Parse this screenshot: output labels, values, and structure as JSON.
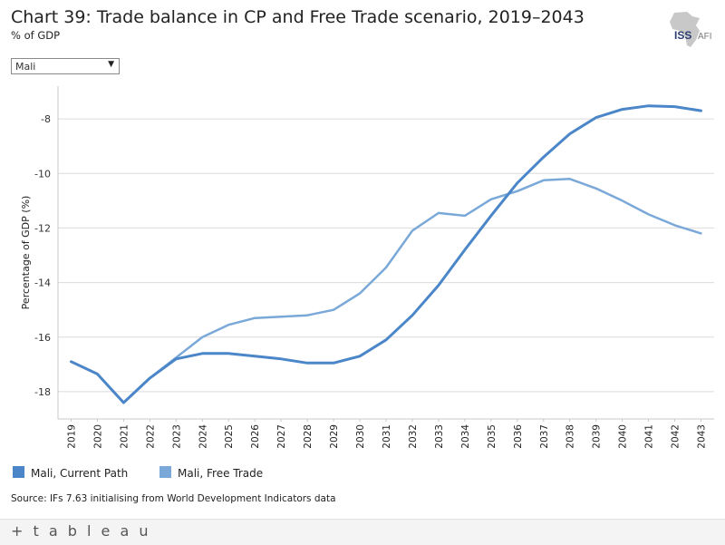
{
  "header": {
    "title": "Chart 39: Trade balance in CP and Free Trade scenario, 2019–2043",
    "subtitle": "% of GDP",
    "logo_text_bold": "ISS",
    "logo_text_light": "AFI"
  },
  "filter": {
    "selected": "Mali",
    "arrow_icon": "dropdown-arrow-icon"
  },
  "chart_data": {
    "type": "line",
    "ylabel": "Percentage of GDP (%)",
    "xlabel": "",
    "ylim": [
      -19,
      -6.8
    ],
    "yticks": [
      -8,
      -10,
      -12,
      -14,
      -16,
      -18
    ],
    "x": [
      "2019",
      "2020",
      "2021",
      "2022",
      "2023",
      "2024",
      "2025",
      "2026",
      "2027",
      "2028",
      "2029",
      "2030",
      "2031",
      "2032",
      "2033",
      "2034",
      "2035",
      "2036",
      "2037",
      "2038",
      "2039",
      "2040",
      "2041",
      "2042",
      "2043"
    ],
    "grid": true,
    "series": [
      {
        "name": "Mali, Current Path",
        "color": "#4a86c8",
        "values": [
          -16.9,
          -17.35,
          -18.4,
          -17.5,
          -16.8,
          -16.6,
          -16.6,
          -16.7,
          -16.8,
          -16.95,
          -16.95,
          -16.7,
          -16.1,
          -15.2,
          -14.1,
          -12.8,
          -11.55,
          -10.35,
          -9.4,
          -8.55,
          -7.95,
          -7.65,
          -7.52,
          -7.55,
          -7.7
        ],
        "line_width": 3
      },
      {
        "name": "Mali, Free Trade",
        "color": "#7aa8d8",
        "values": [
          -16.9,
          -17.35,
          -18.4,
          -17.5,
          -16.75,
          -16.0,
          -15.55,
          -15.3,
          -15.25,
          -15.2,
          -15.0,
          -14.4,
          -13.45,
          -12.1,
          -11.45,
          -11.55,
          -10.95,
          -10.65,
          -10.25,
          -10.2,
          -10.55,
          -11.0,
          -11.5,
          -11.9,
          -12.2
        ],
        "line_width": 2.5
      }
    ]
  },
  "legend": [
    {
      "label": "Mali, Current Path",
      "color": "#4a86c8"
    },
    {
      "label": "Mali, Free Trade",
      "color": "#7aa8d8"
    }
  ],
  "source": "Source: IFs 7.63 initialising from World Development Indicators data",
  "footer": {
    "brand": "+ t a b l e a u"
  }
}
